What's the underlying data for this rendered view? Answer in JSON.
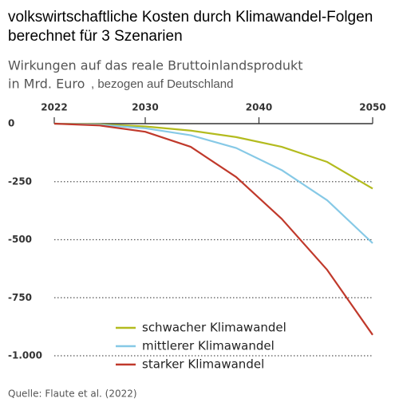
{
  "chart_data": {
    "type": "line",
    "title": [
      "volkswirtschaftliche Kosten durch Klimawandel-Folgen",
      "berechnet für 3 Szenarien"
    ],
    "subtitle": [
      "Wirkungen auf das reale Bruttoinlandsprodukt",
      "in Mrd. Euro",
      ", bezogen auf Deutschland"
    ],
    "x": [
      2022,
      2026,
      2030,
      2034,
      2038,
      2042,
      2046,
      2050
    ],
    "series": [
      {
        "name": "schwacher Klimawandel",
        "color": "#b3bb1e",
        "values": [
          0,
          -3,
          -12,
          -30,
          -58,
          -100,
          -165,
          -280
        ]
      },
      {
        "name": "mittlerer Klimawandel",
        "color": "#86c9e6",
        "values": [
          0,
          -5,
          -20,
          -50,
          -105,
          -200,
          -330,
          -515
        ]
      },
      {
        "name": "starker Klimawandel",
        "color": "#c0392b",
        "values": [
          0,
          -8,
          -35,
          -100,
          -230,
          -410,
          -630,
          -910
        ]
      }
    ],
    "xlim": [
      2022,
      2050
    ],
    "xticks": [
      2022,
      2030,
      2040,
      2050
    ],
    "ylim": [
      -1000,
      0
    ],
    "yticks": [
      0,
      -250,
      -500,
      -750,
      {
        "value": -1000,
        "label": "-1.000"
      }
    ],
    "grid": true,
    "legend": "lower center",
    "source": "Quelle: Flaute et al. (2022)"
  }
}
